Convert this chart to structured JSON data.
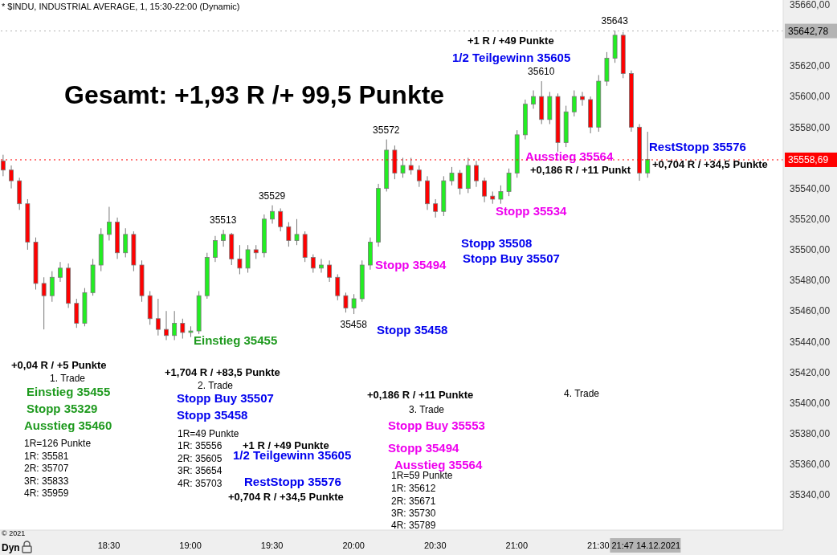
{
  "chart_data": {
    "type": "candlestick",
    "title": "* $INDU, INDUSTRIAL AVERAGE, 1, 15:30-22:00 (Dynamic)",
    "x": [
      17.85,
      17.9,
      17.95,
      18,
      18.05,
      18.1,
      18.15,
      18.2,
      18.25,
      18.3,
      18.35,
      18.4,
      18.45,
      18.5,
      18.55,
      18.6,
      18.65,
      18.7,
      18.75,
      18.8,
      18.85,
      18.9,
      18.95,
      19,
      19.05,
      19.1,
      19.15,
      19.2,
      19.25,
      19.3,
      19.35,
      19.4,
      19.45,
      19.5,
      19.55,
      19.6,
      19.65,
      19.7,
      19.75,
      19.8,
      19.85,
      19.9,
      19.95,
      20,
      20.05,
      20.1,
      20.15,
      20.2,
      20.25,
      20.3,
      20.35,
      20.4,
      20.45,
      20.5,
      20.55,
      20.6,
      20.65,
      20.7,
      20.75,
      20.8,
      20.85,
      20.9,
      20.95,
      21,
      21.05,
      21.1,
      21.15,
      21.2,
      21.25,
      21.3,
      21.35,
      21.4,
      21.45,
      21.5,
      21.55,
      21.6,
      21.65,
      21.7,
      21.75,
      21.8
    ],
    "ohlc": [
      [
        35558,
        35562,
        35548,
        35552
      ],
      [
        35552,
        35555,
        35540,
        35545
      ],
      [
        35545,
        35547,
        35526,
        35530
      ],
      [
        35530,
        35533,
        35500,
        35505
      ],
      [
        35505,
        35508,
        35474,
        35478
      ],
      [
        35478,
        35482,
        35448,
        35470
      ],
      [
        35470,
        35486,
        35466,
        35482
      ],
      [
        35482,
        35492,
        35479,
        35488
      ],
      [
        35488,
        35491,
        35462,
        35465
      ],
      [
        35465,
        35468,
        35449,
        35452
      ],
      [
        35452,
        35475,
        35450,
        35472
      ],
      [
        35472,
        35494,
        35470,
        35490
      ],
      [
        35490,
        35514,
        35486,
        35510
      ],
      [
        35510,
        35528,
        35506,
        35518
      ],
      [
        35518,
        35521,
        35494,
        35498
      ],
      [
        35498,
        35514,
        35495,
        35510
      ],
      [
        35510,
        35512,
        35486,
        35490
      ],
      [
        35490,
        35493,
        35466,
        35470
      ],
      [
        35470,
        35473,
        35451,
        35455
      ],
      [
        35455,
        35468,
        35444,
        35448
      ],
      [
        35448,
        35460,
        35441,
        35444
      ],
      [
        35444,
        35460,
        35441,
        35452
      ],
      [
        35452,
        35455,
        35442,
        35446
      ],
      [
        35446,
        35450,
        35443,
        35447
      ],
      [
        35447,
        35473,
        35445,
        35470
      ],
      [
        35470,
        35498,
        35468,
        35495
      ],
      [
        35495,
        35509,
        35492,
        35506
      ],
      [
        35506,
        35513,
        35502,
        35510
      ],
      [
        35510,
        35511,
        35490,
        35494
      ],
      [
        35494,
        35503,
        35484,
        35488
      ],
      [
        35488,
        35503,
        35485,
        35500
      ],
      [
        35500,
        35503,
        35494,
        35498
      ],
      [
        35498,
        35523,
        35495,
        35520
      ],
      [
        35520,
        35529,
        35517,
        35525
      ],
      [
        35525,
        35527,
        35512,
        35515
      ],
      [
        35515,
        35518,
        35502,
        35506
      ],
      [
        35506,
        35520,
        35503,
        35510
      ],
      [
        35510,
        35512,
        35492,
        35495
      ],
      [
        35495,
        35497,
        35485,
        35488
      ],
      [
        35488,
        35494,
        35485,
        35490
      ],
      [
        35490,
        35493,
        35479,
        35482
      ],
      [
        35482,
        35484,
        35467,
        35470
      ],
      [
        35470,
        35472,
        35459,
        35462
      ],
      [
        35462,
        35471,
        35458,
        35468
      ],
      [
        35468,
        35493,
        35466,
        35490
      ],
      [
        35490,
        35508,
        35487,
        35505
      ],
      [
        35505,
        35543,
        35502,
        35540
      ],
      [
        35540,
        35572,
        35538,
        35565
      ],
      [
        35565,
        35568,
        35546,
        35550
      ],
      [
        35550,
        35560,
        35547,
        35555
      ],
      [
        35555,
        35560,
        35549,
        35552
      ],
      [
        35552,
        35555,
        35541,
        35545
      ],
      [
        35545,
        35548,
        35526,
        35530
      ],
      [
        35530,
        35533,
        35521,
        35525
      ],
      [
        35525,
        35548,
        35522,
        35545
      ],
      [
        35545,
        35554,
        35542,
        35550
      ],
      [
        35550,
        35552,
        35536,
        35540
      ],
      [
        35540,
        35560,
        35537,
        35555
      ],
      [
        35555,
        35558,
        35541,
        35545
      ],
      [
        35545,
        35547,
        35531,
        35535
      ],
      [
        35535,
        35538,
        35530,
        35533
      ],
      [
        35533,
        35542,
        35530,
        35538
      ],
      [
        35538,
        35553,
        35535,
        35550
      ],
      [
        35550,
        35578,
        35547,
        35575
      ],
      [
        35575,
        35598,
        35572,
        35595
      ],
      [
        35595,
        35604,
        35592,
        35600
      ],
      [
        35600,
        35610,
        35582,
        35585
      ],
      [
        35585,
        35603,
        35582,
        35600
      ],
      [
        35600,
        35602,
        35564,
        35570
      ],
      [
        35570,
        35594,
        35567,
        35590
      ],
      [
        35590,
        35604,
        35587,
        35600
      ],
      [
        35600,
        35603,
        35594,
        35598
      ],
      [
        35598,
        35600,
        35576,
        35580
      ],
      [
        35580,
        35614,
        35577,
        35610
      ],
      [
        35610,
        35629,
        35607,
        35625
      ],
      [
        35625,
        35643,
        35622,
        35640
      ],
      [
        35640,
        35642,
        35612,
        35615
      ],
      [
        35615,
        35617,
        35577,
        35580
      ],
      [
        35580,
        35582,
        35545,
        35550
      ],
      [
        35550,
        35577,
        35547,
        35559
      ]
    ],
    "xlim": [
      17.833,
      22.633
    ],
    "xticks": [
      {
        "value": 18.5,
        "label": "18:30"
      },
      {
        "value": 19,
        "label": "19:00"
      },
      {
        "value": 19.5,
        "label": "19:30"
      },
      {
        "value": 20,
        "label": "20:00"
      },
      {
        "value": 20.5,
        "label": "20:30"
      },
      {
        "value": 21,
        "label": "21:00"
      },
      {
        "value": 21.5,
        "label": "21:30"
      },
      {
        "value": 21.7833,
        "label": "21:47 14.12.2021"
      }
    ],
    "ylim": [
      35317,
      35663
    ],
    "yticks": [
      {
        "value": 35660,
        "label": "35660,00"
      },
      {
        "value": 35620,
        "label": "35620,00"
      },
      {
        "value": 35600,
        "label": "35600,00"
      },
      {
        "value": 35580,
        "label": "35580,00"
      },
      {
        "value": 35540,
        "label": "35540,00"
      },
      {
        "value": 35520,
        "label": "35520,00"
      },
      {
        "value": 35500,
        "label": "35500,00"
      },
      {
        "value": 35480,
        "label": "35480,00"
      },
      {
        "value": 35460,
        "label": "35460,00"
      },
      {
        "value": 35440,
        "label": "35440,00"
      },
      {
        "value": 35420,
        "label": "35420,00"
      },
      {
        "value": 35400,
        "label": "35400,00"
      },
      {
        "value": 35380,
        "label": "35380,00"
      },
      {
        "value": 35360,
        "label": "35360,00"
      },
      {
        "value": 35340,
        "label": "35340,00"
      }
    ],
    "ref_lines": [
      {
        "axis": "y",
        "value": 35642.78,
        "label": "35642,78",
        "color": "#b4b4b4"
      },
      {
        "axis": "y",
        "value": 35558.69,
        "label": "35558,69",
        "color": "#ff0000"
      }
    ],
    "annotations": [
      {
        "text": "35513",
        "x": 19.2,
        "y": 35513
      },
      {
        "text": "35529",
        "x": 19.5,
        "y": 35529
      },
      {
        "text": "35572",
        "x": 20.2,
        "y": 35572
      },
      {
        "text": "35458",
        "x": 20,
        "y": 35458
      },
      {
        "text": "35610",
        "x": 21.15,
        "y": 35610
      },
      {
        "text": "35643",
        "x": 21.6,
        "y": 35643
      },
      "Gesamt: +1,93 R /+ 99,5 Punkte",
      "+1 R / +49 Punkte",
      "1/2 Teilgewinn 35605",
      "Ausstieg 35564",
      "+0,186 R / +11 Punkt",
      "RestStopp 35576",
      "+0,704 R / +34,5 Punkte",
      "Stopp 35534",
      "Stopp 35508",
      "Stopp Buy 35507",
      "Stopp 35494",
      "Stopp 35458",
      "Einstieg 35455",
      "+0,04 R / +5 Punkte",
      "1. Trade",
      "Einstieg 35455",
      "Stopp 35329",
      "Ausstieg 35460",
      "1R=126 Punkte",
      "1R: 35581",
      "2R: 35707",
      "3R: 35833",
      "4R: 35959",
      "+1,704 R / +83,5 Punkte",
      "2. Trade",
      "Stopp Buy 35507",
      "Stopp 35458",
      "1R=49 Punkte",
      "1R: 35556",
      "2R: 35605",
      "3R: 35654",
      "4R: 35703",
      "+1 R / +49 Punkte",
      "1/2 Teilgewinn 35605",
      "RestStopp 35576",
      "+0,704 R / +34,5 Punkte",
      "+0,186 R / +11 Punkte",
      "3. Trade",
      "Stopp Buy 35553",
      "Stopp 35494",
      "Ausstieg 35564",
      "1R=59 Punkte",
      "1R: 35612",
      "2R: 35671",
      "3R: 35730",
      "4R: 35789",
      "4. Trade",
      "© 2021",
      "Dyn"
    ]
  }
}
